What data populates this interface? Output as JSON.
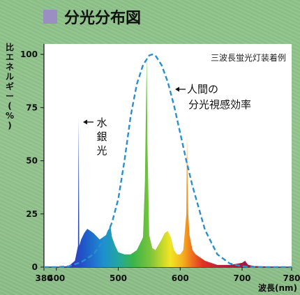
{
  "title": "分光分布図",
  "chart_data": {
    "type": "area",
    "ylabel": "比エネルギー(%)",
    "xlabel": "波長(nm)",
    "note": "三波長蛍光灯装着例",
    "xlim": [
      380,
      780
    ],
    "ylim": [
      0,
      100
    ],
    "x_ticks": [
      380,
      400,
      500,
      600,
      700,
      780
    ],
    "y_ticks": [
      0,
      25,
      50,
      75,
      100
    ],
    "annotations": [
      {
        "text_lines": [
          "人間の",
          "分光視感効率"
        ],
        "target_x": 560
      },
      {
        "text_lines": [
          "水",
          "銀",
          "光"
        ],
        "target_x": 436
      }
    ],
    "series": [
      {
        "name": "人間の分光視感効率",
        "style": "dashed",
        "x": [
          380,
          400,
          420,
          440,
          460,
          480,
          490,
          500,
          510,
          520,
          530,
          540,
          550,
          555,
          560,
          570,
          580,
          590,
          600,
          610,
          620,
          640,
          660,
          680,
          700,
          720,
          740,
          760,
          780
        ],
        "y": [
          0,
          0.04,
          0.4,
          2.3,
          6,
          14,
          21,
          32,
          50,
          71,
          86,
          95,
          99.5,
          100,
          99.5,
          95,
          87,
          76,
          63,
          50,
          38,
          17.5,
          6,
          1.7,
          0.4,
          0.1,
          0,
          0,
          0
        ]
      },
      {
        "name": "三波長蛍光灯",
        "style": "filled",
        "x": [
          400,
          420,
          430,
          435,
          436,
          437,
          440,
          445,
          450,
          455,
          460,
          470,
          480,
          485,
          487,
          490,
          495,
          500,
          510,
          520,
          530,
          540,
          543,
          545,
          546,
          547,
          550,
          555,
          560,
          570,
          575,
          580,
          585,
          590,
          595,
          600,
          605,
          610,
          611,
          612,
          613,
          615,
          620,
          625,
          630,
          640,
          650,
          660,
          680,
          700,
          705,
          707,
          710,
          720,
          740,
          760,
          780
        ],
        "y": [
          0,
          0.5,
          3,
          10,
          70,
          10,
          13,
          16,
          18,
          17,
          16,
          13,
          15,
          18,
          20,
          14,
          10,
          7,
          6,
          6,
          8,
          14,
          40,
          80,
          100,
          60,
          15,
          9,
          8,
          13,
          16,
          17,
          14,
          8,
          6,
          6,
          8,
          25,
          62,
          40,
          25,
          15,
          8,
          6,
          5,
          3,
          2,
          1,
          1,
          2,
          3,
          2,
          1,
          0.5,
          0.3,
          0.2,
          0
        ]
      }
    ],
    "colors": {
      "dashed_line": "#2a8fcf",
      "plot_background": "#ffffff",
      "page_background": "#8fc08a",
      "title_square": "#9b8ec2"
    }
  }
}
